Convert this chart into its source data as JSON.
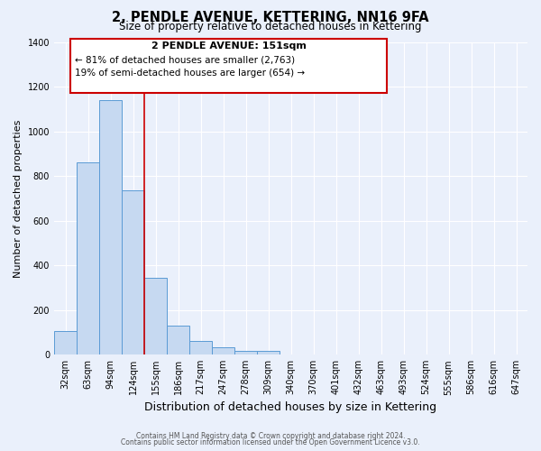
{
  "title": "2, PENDLE AVENUE, KETTERING, NN16 9FA",
  "subtitle": "Size of property relative to detached houses in Kettering",
  "xlabel": "Distribution of detached houses by size in Kettering",
  "ylabel": "Number of detached properties",
  "bar_labels": [
    "32sqm",
    "63sqm",
    "94sqm",
    "124sqm",
    "155sqm",
    "186sqm",
    "217sqm",
    "247sqm",
    "278sqm",
    "309sqm",
    "340sqm",
    "370sqm",
    "401sqm",
    "432sqm",
    "463sqm",
    "493sqm",
    "524sqm",
    "555sqm",
    "586sqm",
    "616sqm",
    "647sqm"
  ],
  "bar_values": [
    105,
    860,
    1140,
    735,
    345,
    130,
    60,
    32,
    18,
    15,
    0,
    0,
    0,
    0,
    0,
    0,
    0,
    0,
    0,
    0,
    0
  ],
  "bar_color": "#c6d9f1",
  "bar_edge_color": "#5b9bd5",
  "ylim": [
    0,
    1400
  ],
  "yticks": [
    0,
    200,
    400,
    600,
    800,
    1000,
    1200,
    1400
  ],
  "vline_color": "#cc0000",
  "annotation_title": "2 PENDLE AVENUE: 151sqm",
  "annotation_line1": "← 81% of detached houses are smaller (2,763)",
  "annotation_line2": "19% of semi-detached houses are larger (654) →",
  "annotation_box_color": "#cc0000",
  "footer1": "Contains HM Land Registry data © Crown copyright and database right 2024.",
  "footer2": "Contains public sector information licensed under the Open Government Licence v3.0.",
  "background_color": "#eaf0fb",
  "plot_bg_color": "#eaf0fb"
}
